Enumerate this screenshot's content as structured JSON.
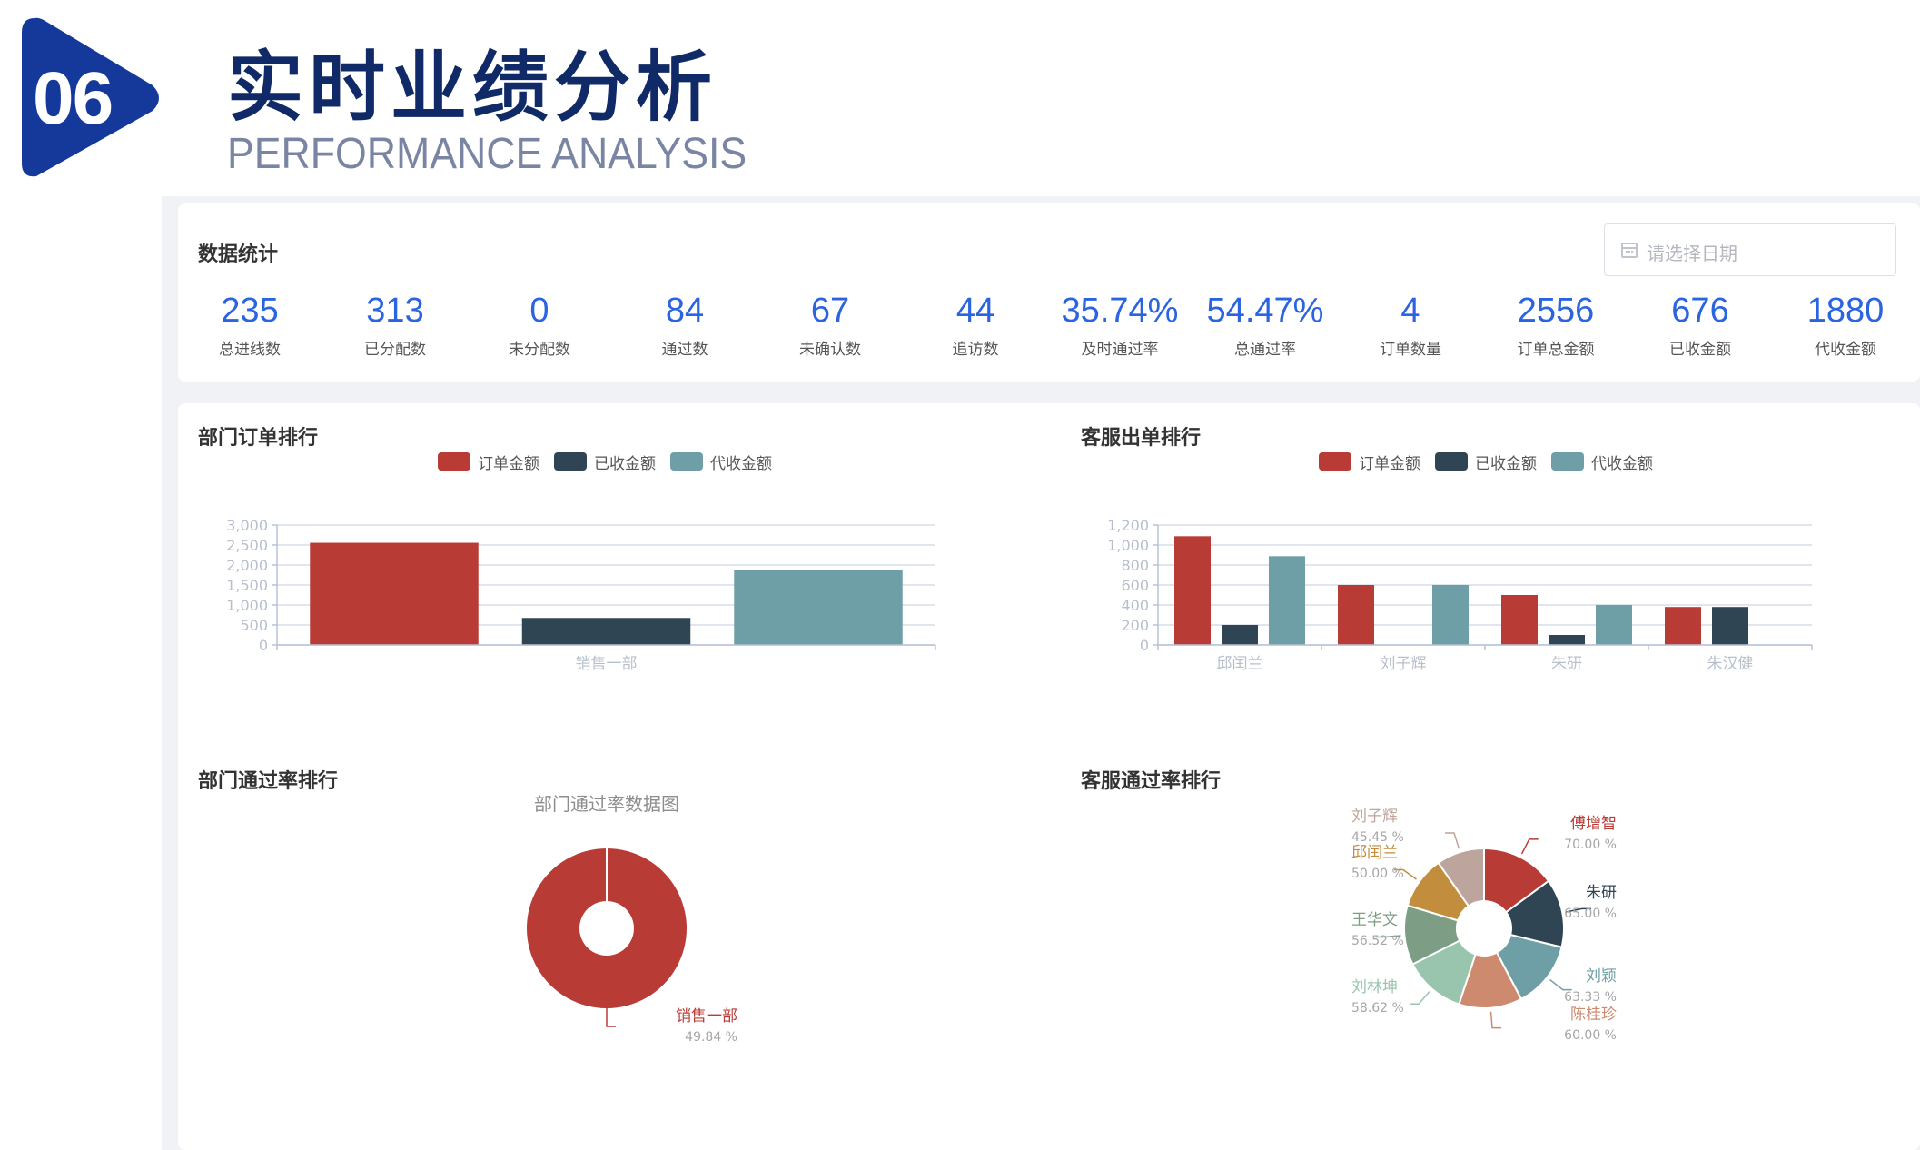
{
  "header": {
    "badge_number": "06",
    "title": "实时业绩分析",
    "subtitle": "PERFORMANCE ANALYSIS"
  },
  "stats": {
    "section_title": "数据统计",
    "date_placeholder": "请选择日期",
    "items": [
      {
        "value": "235",
        "label": "总进线数"
      },
      {
        "value": "313",
        "label": "已分配数"
      },
      {
        "value": "0",
        "label": "未分配数"
      },
      {
        "value": "84",
        "label": "通过数"
      },
      {
        "value": "67",
        "label": "未确认数"
      },
      {
        "value": "44",
        "label": "追访数"
      },
      {
        "value": "35.74%",
        "label": "及时通过率"
      },
      {
        "value": "54.47%",
        "label": "总通过率"
      },
      {
        "value": "4",
        "label": "订单数量"
      },
      {
        "value": "2556",
        "label": "订单总金额"
      },
      {
        "value": "676",
        "label": "已收金额"
      },
      {
        "value": "1880",
        "label": "代收金额"
      }
    ]
  },
  "colors": {
    "red": "#b83b36",
    "navy": "#2f4554",
    "teal": "#6f9fa6",
    "accent_blue": "#2a64e0",
    "badge_blue": "#14399b"
  },
  "sections": {
    "dept_orders": "部门订单排行",
    "cs_orders": "客服出单排行",
    "dept_pass": "部门通过率排行",
    "cs_pass": "客服通过率排行"
  },
  "chart_data": [
    {
      "type": "bar",
      "legend": [
        "订单金额",
        "已收金额",
        "代收金额"
      ],
      "categories": [
        "销售一部"
      ],
      "series": [
        {
          "name": "订单金额",
          "values": [
            2556
          ]
        },
        {
          "name": "已收金额",
          "values": [
            676
          ]
        },
        {
          "name": "代收金额",
          "values": [
            1880
          ]
        }
      ],
      "yticks": [
        "0",
        "500",
        "1,000",
        "1,500",
        "2,000",
        "2,500",
        "3,000"
      ],
      "ylim": [
        0,
        3000
      ],
      "grid": true,
      "legend_position": "top"
    },
    {
      "type": "bar",
      "legend": [
        "订单金额",
        "已收金额",
        "代收金额"
      ],
      "categories": [
        "邱闰兰",
        "刘子辉",
        "朱研",
        "朱汉健"
      ],
      "series": [
        {
          "name": "订单金额",
          "values": [
            1088,
            600,
            500,
            380
          ]
        },
        {
          "name": "已收金额",
          "values": [
            200,
            0,
            100,
            380
          ]
        },
        {
          "name": "代收金额",
          "values": [
            888,
            600,
            400,
            0
          ]
        }
      ],
      "yticks": [
        "0",
        "200",
        "400",
        "600",
        "800",
        "1,000",
        "1,200"
      ],
      "ylim": [
        0,
        1200
      ],
      "grid": true,
      "legend_position": "top"
    },
    {
      "type": "pie",
      "title": "部门通过率数据图",
      "slices": [
        {
          "name": "销售一部",
          "value": 49.84,
          "label": "49.84 %"
        }
      ]
    },
    {
      "type": "pie",
      "slices": [
        {
          "name": "傅增智",
          "value": 70.0,
          "label": "70.00 %",
          "color": "#b83b36"
        },
        {
          "name": "朱研",
          "value": 65.0,
          "label": "65.00 %",
          "color": "#2f4554"
        },
        {
          "name": "刘颖",
          "value": 63.33,
          "label": "63.33 %",
          "color": "#6f9fa6"
        },
        {
          "name": "陈桂珍",
          "value": 60.0,
          "label": "60.00 %",
          "color": "#ce8a6f"
        },
        {
          "name": "刘林坤",
          "value": 58.62,
          "label": "58.62 %",
          "color": "#99c4ad"
        },
        {
          "name": "王华文",
          "value": 56.52,
          "label": "56.52 %",
          "color": "#7e9d85"
        },
        {
          "name": "邱闰兰",
          "value": 50.0,
          "label": "50.00 %",
          "color": "#c28d3c"
        },
        {
          "name": "刘子辉",
          "value": 45.45,
          "label": "45.45 %",
          "color": "#bda49c"
        }
      ]
    }
  ]
}
